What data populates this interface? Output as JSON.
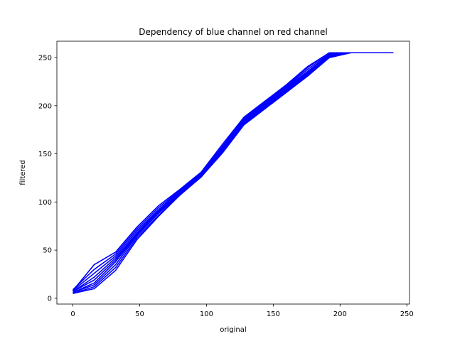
{
  "chart_data": {
    "type": "line",
    "title": "Dependency of blue channel on red channel",
    "xlabel": "original",
    "ylabel": "filtered",
    "xlim": [
      -12,
      252
    ],
    "ylim": [
      -6,
      267
    ],
    "xticks": [
      0,
      50,
      100,
      150,
      200,
      250
    ],
    "yticks": [
      0,
      50,
      100,
      150,
      200,
      250
    ],
    "line_color": "#0000ff",
    "grid": false,
    "legend": "none",
    "x": [
      0,
      16,
      32,
      48,
      64,
      80,
      96,
      112,
      128,
      144,
      160,
      176,
      192,
      208,
      224,
      240
    ],
    "series": [
      {
        "values": [
          8,
          35,
          48,
          74,
          96,
          113,
          131,
          160,
          188,
          205,
          222,
          241,
          255,
          255,
          255,
          255
        ]
      },
      {
        "values": [
          9,
          30,
          46,
          72,
          94,
          112,
          130,
          158,
          187,
          204,
          221,
          240,
          255,
          255,
          255,
          255
        ]
      },
      {
        "values": [
          8,
          26,
          44,
          70,
          92,
          111,
          129,
          157,
          186,
          203,
          220,
          238,
          254,
          255,
          255,
          255
        ]
      },
      {
        "values": [
          7,
          22,
          42,
          68,
          91,
          110,
          128,
          156,
          185,
          202,
          219,
          236,
          253,
          255,
          255,
          255
        ]
      },
      {
        "values": [
          7,
          19,
          40,
          67,
          90,
          109,
          128,
          155,
          184,
          201,
          218,
          235,
          252,
          255,
          255,
          255
        ]
      },
      {
        "values": [
          6,
          16,
          38,
          66,
          89,
          109,
          127,
          154,
          183,
          200,
          217,
          234,
          252,
          255,
          255,
          255
        ]
      },
      {
        "values": [
          6,
          14,
          35,
          65,
          88,
          108,
          127,
          153,
          182,
          199,
          216,
          233,
          251,
          255,
          255,
          255
        ]
      },
      {
        "values": [
          5,
          12,
          32,
          63,
          86,
          107,
          126,
          152,
          181,
          198,
          215,
          232,
          250,
          255,
          255,
          255
        ]
      },
      {
        "values": [
          5,
          10,
          29,
          61,
          85,
          107,
          126,
          151,
          180,
          197,
          214,
          231,
          250,
          255,
          255,
          255
        ]
      }
    ]
  }
}
